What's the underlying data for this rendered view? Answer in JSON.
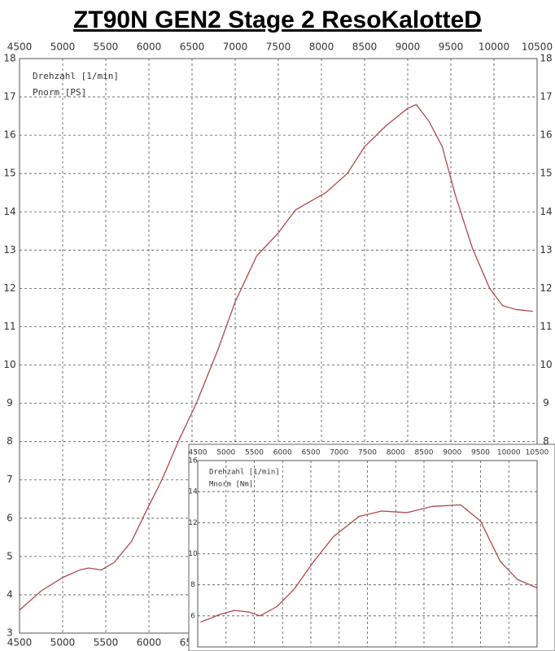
{
  "title": "ZT90N GEN2  Stage 2  ResoKalotteD",
  "chart_data": [
    {
      "type": "line",
      "x_label": "Drehzahl [1/min]",
      "y_label": "Pnorm [PS]",
      "color": "#b04848",
      "grid": true,
      "xlim": [
        4500,
        10500
      ],
      "xticks": [
        4500,
        5000,
        5500,
        6000,
        6500,
        7000,
        7500,
        8000,
        8500,
        9000,
        9500,
        10000,
        10500
      ],
      "ylim": [
        3,
        18
      ],
      "yticks": [
        3,
        4,
        5,
        6,
        7,
        8,
        9,
        10,
        11,
        12,
        13,
        14,
        15,
        16,
        17,
        18
      ],
      "x": [
        4500,
        4750,
        5000,
        5200,
        5300,
        5450,
        5600,
        5800,
        5950,
        6150,
        6350,
        6550,
        6800,
        7000,
        7250,
        7500,
        7700,
        8050,
        8300,
        8500,
        8750,
        9000,
        9100,
        9250,
        9400,
        9550,
        9750,
        9950,
        10100,
        10250,
        10450
      ],
      "values": [
        3.6,
        4.1,
        4.45,
        4.65,
        4.7,
        4.65,
        4.85,
        5.4,
        6.1,
        7.0,
        8.05,
        9.0,
        10.4,
        11.65,
        12.85,
        13.45,
        14.05,
        14.5,
        15.0,
        15.7,
        16.25,
        16.7,
        16.8,
        16.35,
        15.7,
        14.45,
        13.05,
        12.0,
        11.55,
        11.45,
        11.4
      ]
    },
    {
      "type": "line",
      "x_label": "Drehzahl [1/min]",
      "y_label": "Mnorm [Nm]",
      "color": "#b04848",
      "grid": true,
      "xlim": [
        4500,
        10500
      ],
      "xticks": [
        4500,
        5000,
        5500,
        6000,
        6500,
        7000,
        7500,
        8000,
        8500,
        9000,
        9500,
        10000,
        10500
      ],
      "ylim": [
        4,
        16
      ],
      "yticks": [
        6,
        8,
        10,
        12,
        14,
        16
      ],
      "x": [
        4550,
        4900,
        5150,
        5400,
        5600,
        5900,
        6200,
        6550,
        6900,
        7350,
        7750,
        8200,
        8650,
        9150,
        9500,
        9850,
        10150,
        10500
      ],
      "values": [
        5.6,
        6.1,
        6.35,
        6.25,
        6.0,
        6.6,
        7.7,
        9.5,
        11.1,
        12.4,
        12.75,
        12.65,
        13.05,
        13.15,
        12.1,
        9.5,
        8.35,
        7.8
      ]
    }
  ]
}
